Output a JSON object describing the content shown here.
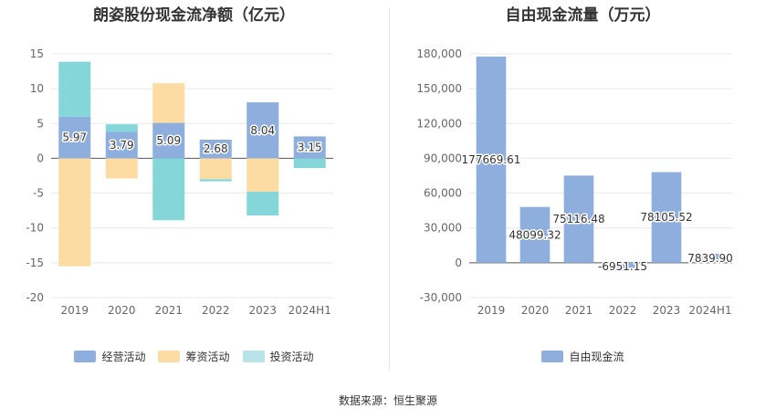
{
  "left_chart": {
    "title": "朗姿股份现金流净额（亿元）",
    "legend": [
      {
        "label": "经营活动",
        "color": "#8eafdd"
      },
      {
        "label": "筹资活动",
        "color": "#fddca3"
      },
      {
        "label": "投资活动",
        "color": "#b9e3e7"
      }
    ]
  },
  "right_chart": {
    "title": "自由现金流量（万元）",
    "legend": [
      {
        "label": "自由现金流",
        "color": "#8eafdd"
      }
    ]
  },
  "source": "数据来源：恒生聚源",
  "chart_data": [
    {
      "type": "bar",
      "stacked": true,
      "title": "朗姿股份现金流净额（亿元）",
      "categories": [
        "2019",
        "2020",
        "2021",
        "2022",
        "2023",
        "2024H1"
      ],
      "series": [
        {
          "name": "经营活动",
          "values": [
            5.97,
            3.79,
            5.09,
            2.68,
            8.04,
            3.15
          ],
          "color": "#8eafdd"
        },
        {
          "name": "筹资活动",
          "values": [
            -15.5,
            -2.9,
            5.7,
            -3.0,
            -4.8,
            0.0
          ],
          "color": "#fddca3"
        },
        {
          "name": "投资活动",
          "values": [
            7.9,
            1.1,
            -8.9,
            -0.3,
            -3.4,
            -1.4
          ],
          "color": "#85d6d8"
        }
      ],
      "data_labels": [
        "5.97",
        "3.79",
        "5.09",
        "2.68",
        "8.04",
        "3.15"
      ],
      "ylim": [
        -20,
        15
      ],
      "yticks": [
        "15",
        "10",
        "5",
        "0",
        "-5",
        "-10",
        "-15",
        "-20"
      ],
      "grid": true,
      "legend_position": "bottom"
    },
    {
      "type": "bar",
      "title": "自由现金流量（万元）",
      "categories": [
        "2019",
        "2020",
        "2021",
        "2022",
        "2023",
        "2024H1"
      ],
      "series": [
        {
          "name": "自由现金流",
          "values": [
            177669.61,
            48099.32,
            75116.48,
            -6951.15,
            78105.52,
            7839.9
          ],
          "color": "#8eafdd"
        }
      ],
      "data_labels": [
        "177669.61",
        "48099.32",
        "75116.48",
        "-6951.15",
        "78105.52",
        "7839.90"
      ],
      "ylim": [
        -30000,
        180000
      ],
      "yticks": [
        "180,000",
        "150,000",
        "120,000",
        "90,000",
        "60,000",
        "30,000",
        "0",
        "-30,000"
      ],
      "grid": true,
      "legend_position": "bottom"
    }
  ]
}
